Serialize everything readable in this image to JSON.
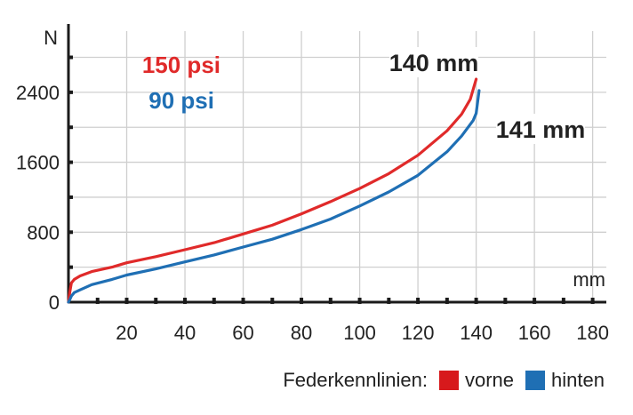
{
  "chart_data": {
    "type": "line",
    "y_unit_label": "N",
    "x_unit_label": "mm",
    "xlim": [
      0,
      185
    ],
    "ylim": [
      0,
      3100
    ],
    "x_ticks": [
      20,
      40,
      60,
      80,
      100,
      120,
      140,
      160,
      180
    ],
    "y_ticks": [
      0,
      800,
      1600,
      2400
    ],
    "grid": true,
    "series": [
      {
        "name": "150 psi",
        "color": "#e02a2a",
        "points": [
          [
            0,
            0
          ],
          [
            0.5,
            120
          ],
          [
            1,
            220
          ],
          [
            2,
            260
          ],
          [
            4,
            300
          ],
          [
            8,
            350
          ],
          [
            15,
            400
          ],
          [
            20,
            450
          ],
          [
            30,
            520
          ],
          [
            40,
            600
          ],
          [
            50,
            680
          ],
          [
            60,
            780
          ],
          [
            70,
            880
          ],
          [
            80,
            1010
          ],
          [
            90,
            1150
          ],
          [
            100,
            1300
          ],
          [
            110,
            1470
          ],
          [
            120,
            1680
          ],
          [
            130,
            1960
          ],
          [
            135,
            2150
          ],
          [
            138,
            2320
          ],
          [
            140,
            2550
          ]
        ]
      },
      {
        "name": "90 psi",
        "color": "#1f6fb4",
        "points": [
          [
            0,
            0
          ],
          [
            0.5,
            30
          ],
          [
            1,
            70
          ],
          [
            2,
            110
          ],
          [
            4,
            140
          ],
          [
            8,
            200
          ],
          [
            15,
            260
          ],
          [
            20,
            310
          ],
          [
            30,
            380
          ],
          [
            40,
            460
          ],
          [
            50,
            540
          ],
          [
            60,
            630
          ],
          [
            70,
            720
          ],
          [
            80,
            830
          ],
          [
            90,
            950
          ],
          [
            100,
            1100
          ],
          [
            110,
            1260
          ],
          [
            120,
            1450
          ],
          [
            130,
            1720
          ],
          [
            135,
            1900
          ],
          [
            139,
            2080
          ],
          [
            140,
            2160
          ],
          [
            141,
            2420
          ]
        ]
      }
    ],
    "annotations": [
      {
        "text": "140 mm",
        "series": "150 psi"
      },
      {
        "text": "141 mm",
        "series": "90 psi"
      }
    ]
  },
  "legend": {
    "title": "Federkennlinien:",
    "items": [
      {
        "label": "vorne",
        "color": "#d7191c"
      },
      {
        "label": "hinten",
        "color": "#1f6fb4"
      }
    ]
  }
}
